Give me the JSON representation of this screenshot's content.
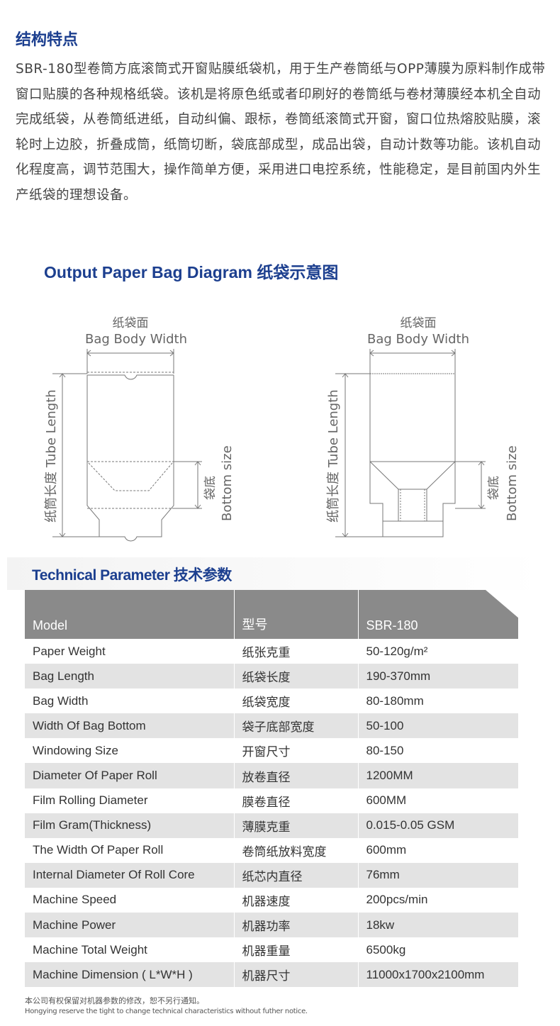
{
  "section1": {
    "title": "结构特点",
    "text": "SBR-180型卷筒方底滚筒式开窗贴膜纸袋机，用于生产卷筒纸与OPP薄膜为原料制作成带窗口贴膜的各种规格纸袋。该机是将原色纸或者印刷好的卷筒纸与卷材薄膜经本机全自动完成纸袋，从卷筒纸进纸，自动纠偏、跟标，卷筒纸滚筒式开窗，窗口位热熔胶贴膜，滚轮时上边胶，折叠成筒，纸筒切断，袋底部成型，成品出袋，自动计数等功能。该机自动化程度高，调节范围大，操作简单方便，采用进口电控系统，性能稳定，是目前国内外生产纸袋的理想设备。"
  },
  "diagram": {
    "title": "Output Paper Bag Diagram 纸袋示意图",
    "width_cn": "纸袋面",
    "width_en": "Bag Body Width",
    "length_label": "纸筒长度 Tube Length",
    "bottom_cn": "袋底",
    "bottom_en": "Bottom size"
  },
  "params": {
    "title": "Technical Parameter 技术参数",
    "header": [
      "Model",
      "型号",
      "SBR-180"
    ],
    "rows": [
      [
        "Paper Weight",
        "纸张克重",
        "50-120g/m²"
      ],
      [
        "Bag Length",
        "纸袋长度",
        "190-370mm"
      ],
      [
        "Bag Width",
        "纸袋宽度",
        "80-180mm"
      ],
      [
        "Width Of Bag Bottom",
        "袋子底部宽度",
        "50-100"
      ],
      [
        "Windowing Size",
        "开窗尺寸",
        "80-150"
      ],
      [
        "Diameter Of Paper Roll",
        "放卷直径",
        "1200MM"
      ],
      [
        "Film Rolling Diameter",
        "膜卷直径",
        "600MM"
      ],
      [
        "Film Gram(Thickness)",
        "薄膜克重",
        "0.015-0.05 GSM"
      ],
      [
        "The Width Of Paper Roll",
        "卷筒纸放料宽度",
        "600mm"
      ],
      [
        "Internal Diameter Of Roll Core",
        "纸芯内直径",
        "76mm"
      ],
      [
        "Machine Speed",
        "机器速度",
        "200pcs/min"
      ],
      [
        "Machine Power",
        "机器功率",
        "18kw"
      ],
      [
        "Machine Total Weight",
        "机器重量",
        "6500kg"
      ],
      [
        "Machine Dimension ( L*W*H )",
        "机器尺寸",
        "11000x1700x2100mm"
      ]
    ]
  },
  "notes": {
    "cn": "本公司有权保留对机器参数的修改，恕不另行通知。",
    "en": "Hongying reserve the tight to change technical characteristics without futher notice."
  }
}
